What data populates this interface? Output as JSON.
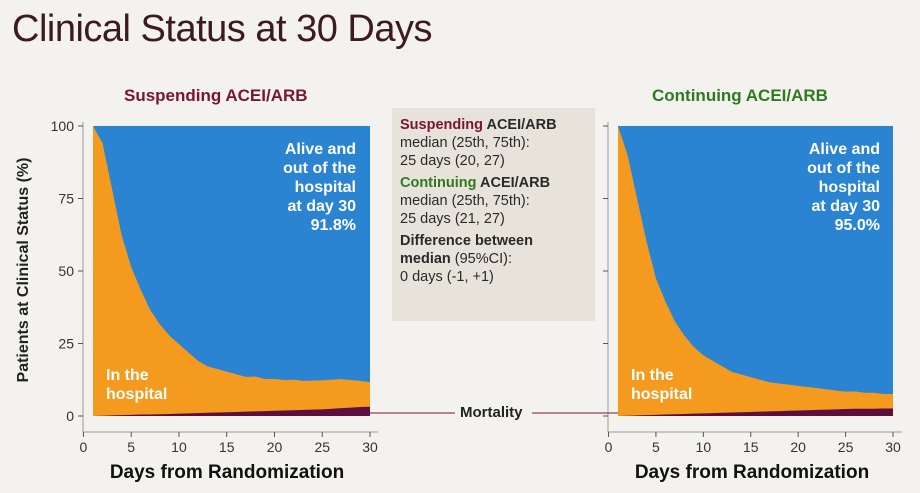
{
  "slide_title": "Clinical Status at 30 Days",
  "info_box": {
    "susp_word": "Suspending",
    "susp_rest": " ACEI/ARB",
    "susp_line1": "median (25th, 75th):",
    "susp_line2": "25 days (20, 27)",
    "cont_word": "Continuing",
    "cont_rest": " ACEI/ARB",
    "cont_line1": "median (25th, 75th):",
    "cont_line2": "25 days (21, 27)",
    "diff_head1": "Difference between",
    "diff_head2": "median",
    "diff_head2_rest": " (95%CI):",
    "diff_line": "0 days (-1, +1)"
  },
  "mortality_label": "Mortality",
  "colors": {
    "alive": "#2a84d2",
    "hospital": "#f39a1f",
    "mortality": "#5e0e3e",
    "suspending": "#7a1530",
    "continuing": "#2e7a22"
  },
  "chart_data": [
    {
      "type": "area",
      "title": "Suspending ACEI/ARB",
      "xlabel": "Days from Randomization",
      "ylabel": "Patients at Clinical Status (%)",
      "xlim": [
        1,
        30
      ],
      "ylim": [
        0,
        100
      ],
      "xticks": [
        0,
        5,
        10,
        15,
        20,
        25,
        30
      ],
      "yticks": [
        0,
        25,
        50,
        75,
        100
      ],
      "x": [
        1,
        2,
        3,
        4,
        5,
        6,
        7,
        8,
        9,
        10,
        11,
        12,
        13,
        14,
        15,
        16,
        17,
        18,
        19,
        20,
        21,
        22,
        23,
        24,
        25,
        26,
        27,
        28,
        29,
        30
      ],
      "series": [
        {
          "name": "Mortality",
          "values": [
            0,
            0.1,
            0.2,
            0.3,
            0.4,
            0.5,
            0.5,
            0.6,
            0.7,
            0.8,
            0.9,
            1.0,
            1.1,
            1.2,
            1.3,
            1.4,
            1.5,
            1.6,
            1.7,
            1.8,
            1.9,
            2.0,
            2.1,
            2.2,
            2.3,
            2.5,
            2.7,
            2.9,
            3.1,
            3.2
          ]
        },
        {
          "name": "In the hospital",
          "values": [
            100,
            94,
            78,
            62,
            51,
            43,
            36,
            31,
            27,
            24,
            21,
            18,
            16,
            15,
            14,
            13,
            12,
            12,
            11,
            11,
            10.5,
            10.5,
            10,
            10,
            10,
            10,
            10,
            9.5,
            9,
            8.5
          ]
        },
        {
          "name": "Alive and out of the hospital",
          "values": [
            0,
            6,
            22,
            38,
            49,
            57,
            64,
            69,
            73,
            76,
            79,
            82,
            84,
            85,
            86,
            87,
            88,
            88,
            89,
            89,
            89.5,
            89.5,
            90,
            90,
            90,
            90,
            90,
            90.5,
            91,
            91.8
          ]
        }
      ],
      "annotations": {
        "alive_line1": "Alive and",
        "alive_line2": "out of the",
        "alive_line3": "hospital",
        "alive_line4": "at day 30",
        "alive_value": "91.8%",
        "hosp_line1": "In the",
        "hosp_line2": "hospital"
      }
    },
    {
      "type": "area",
      "title": "Continuing ACEI/ARB",
      "xlabel": "Days from Randomization",
      "ylabel": "Patients at Clinical Status (%)",
      "xlim": [
        1,
        30
      ],
      "ylim": [
        0,
        100
      ],
      "xticks": [
        0,
        5,
        10,
        15,
        20,
        25,
        30
      ],
      "yticks": [
        0,
        25,
        50,
        75,
        100
      ],
      "x": [
        1,
        2,
        3,
        4,
        5,
        6,
        7,
        8,
        9,
        10,
        11,
        12,
        13,
        14,
        15,
        16,
        17,
        18,
        19,
        20,
        21,
        22,
        23,
        24,
        25,
        26,
        27,
        28,
        29,
        30
      ],
      "series": [
        {
          "name": "Mortality",
          "values": [
            0,
            0.1,
            0.2,
            0.3,
            0.4,
            0.5,
            0.6,
            0.7,
            0.8,
            0.9,
            1.0,
            1.1,
            1.2,
            1.3,
            1.4,
            1.5,
            1.6,
            1.7,
            1.8,
            1.9,
            2.0,
            2.1,
            2.2,
            2.3,
            2.4,
            2.5,
            2.5,
            2.5,
            2.6,
            2.6
          ]
        },
        {
          "name": "In the hospital",
          "values": [
            100,
            90,
            75,
            60,
            47,
            39,
            32,
            27,
            23,
            20,
            18,
            16,
            14,
            13,
            12,
            11,
            10,
            9.5,
            9,
            8.5,
            8,
            7.5,
            7,
            6.5,
            6,
            6,
            5.5,
            5.5,
            5,
            5
          ]
        },
        {
          "name": "Alive and out of the hospital",
          "values": [
            0,
            10,
            25,
            40,
            53,
            61,
            68,
            73,
            77,
            80,
            82,
            84,
            86,
            87,
            88,
            89,
            90,
            90.5,
            91,
            91.5,
            92,
            92.5,
            93,
            93.5,
            94,
            94,
            94.5,
            94.5,
            95,
            95.0
          ]
        }
      ],
      "annotations": {
        "alive_line1": "Alive and",
        "alive_line2": "out of the",
        "alive_line3": "hospital",
        "alive_line4": "at day 30",
        "alive_value": "95.0%",
        "hosp_line1": "In the",
        "hosp_line2": "hospital"
      }
    }
  ]
}
